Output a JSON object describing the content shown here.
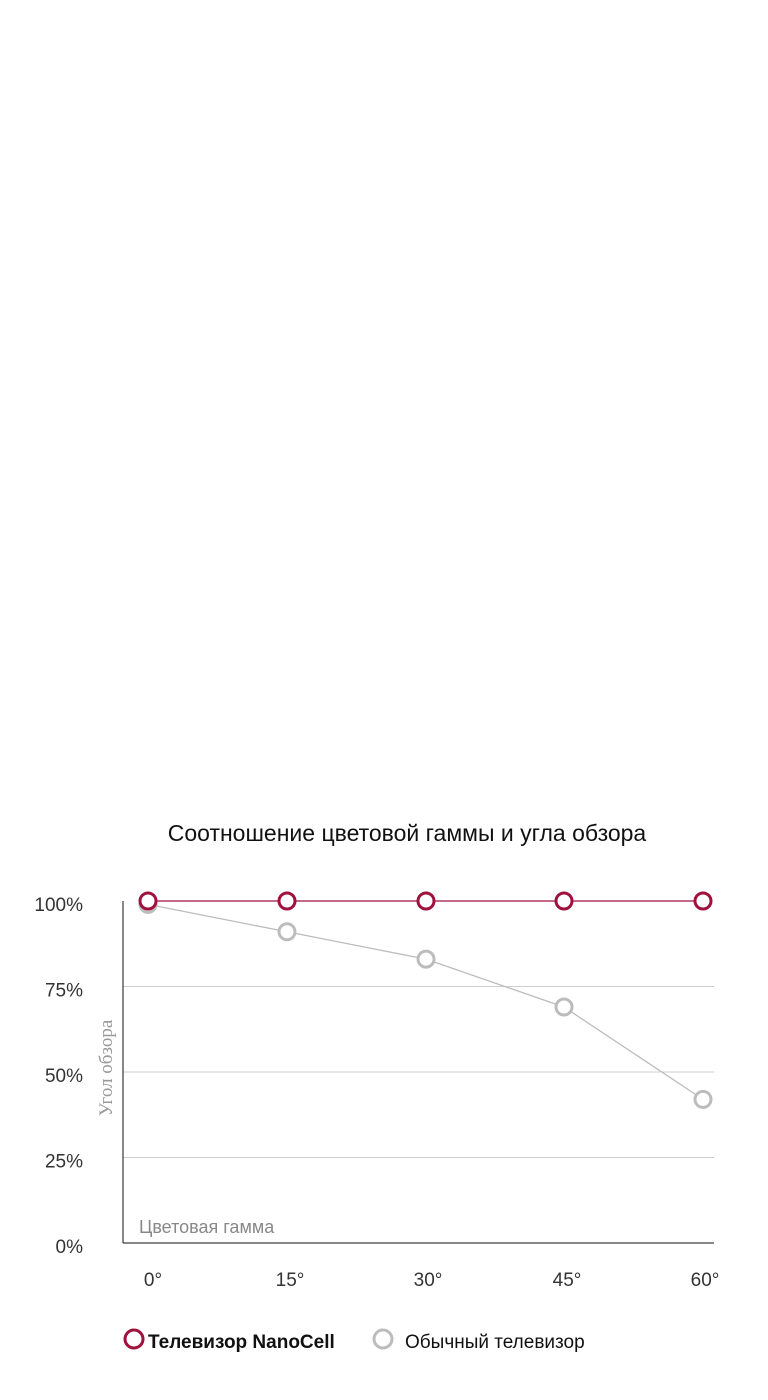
{
  "colors": {
    "nanocell": "#a0123e",
    "regular": "#bcbcbc",
    "grid": "#cfcfcf",
    "axis": "#111111"
  },
  "chart_data": {
    "type": "line",
    "title": "Соотношение цветовой гаммы и угла обзора",
    "xlabel": "Цветовая гамма",
    "ylabel": "Угол обзора",
    "categories": [
      "0°",
      "15°",
      "30°",
      "45°",
      "60°"
    ],
    "yticks": [
      "100%",
      "75%",
      "50%",
      "25%",
      "0%"
    ],
    "ylim": [
      0,
      100
    ],
    "grid": true,
    "legend_position": "bottom",
    "series": [
      {
        "name": "Телевизор NanoCell",
        "values": [
          100,
          100,
          100,
          100,
          100
        ],
        "color": "#a0123e"
      },
      {
        "name": "Обычный телевизор",
        "values": [
          99,
          91,
          83,
          69,
          42
        ],
        "color": "#bcbcbc"
      }
    ]
  }
}
